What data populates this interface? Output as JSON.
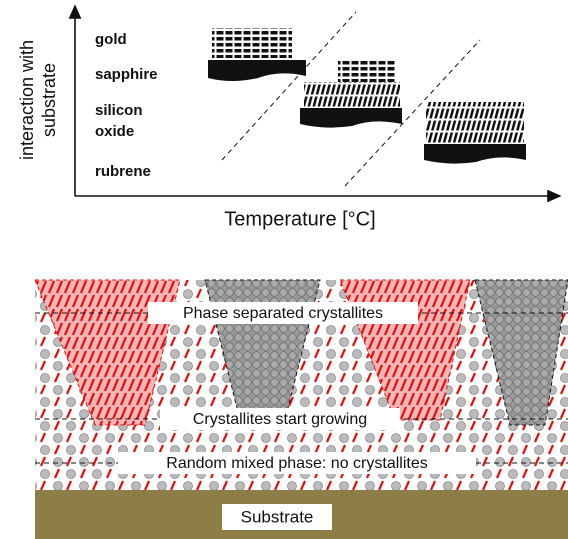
{
  "top_panel": {
    "y_axis_label": [
      "interaction with",
      "substrate"
    ],
    "substrate_labels": [
      "gold",
      "sapphire",
      "silicon",
      "oxide",
      "rubrene"
    ],
    "x_axis_label": "Temperature [°C]"
  },
  "bottom_panel": {
    "layers": [
      "Phase separated crystallites",
      "Crystallites start growing",
      "Random mixed phase: no crystallites"
    ],
    "substrate": "Substrate"
  }
}
